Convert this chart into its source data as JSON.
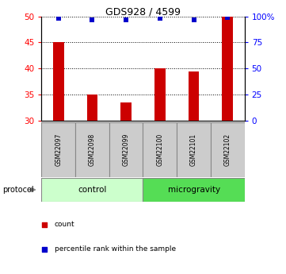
{
  "title": "GDS928 / 4599",
  "samples": [
    "GSM22097",
    "GSM22098",
    "GSM22099",
    "GSM22100",
    "GSM22101",
    "GSM22102"
  ],
  "counts": [
    45,
    35,
    33.5,
    40,
    39.5,
    50
  ],
  "percentile_ranks": [
    98,
    97,
    97,
    98,
    97,
    99
  ],
  "ylim_left": [
    30,
    50
  ],
  "ylim_right": [
    0,
    100
  ],
  "yticks_left": [
    30,
    35,
    40,
    45,
    50
  ],
  "yticks_right": [
    0,
    25,
    50,
    75,
    100
  ],
  "ytick_labels_right": [
    "0",
    "25",
    "50",
    "75",
    "100%"
  ],
  "bar_color": "#cc0000",
  "dot_color": "#0000cc",
  "bar_bottom": 30,
  "protocol_groups": [
    {
      "label": "control",
      "start": 0,
      "end": 3,
      "color": "#ccffcc"
    },
    {
      "label": "microgravity",
      "start": 3,
      "end": 6,
      "color": "#55dd55"
    }
  ],
  "legend_items": [
    {
      "color": "#cc0000",
      "label": "count",
      "marker": "s"
    },
    {
      "color": "#0000cc",
      "label": "percentile rank within the sample",
      "marker": "s"
    }
  ],
  "protocol_label": "protocol",
  "sample_box_color": "#cccccc"
}
